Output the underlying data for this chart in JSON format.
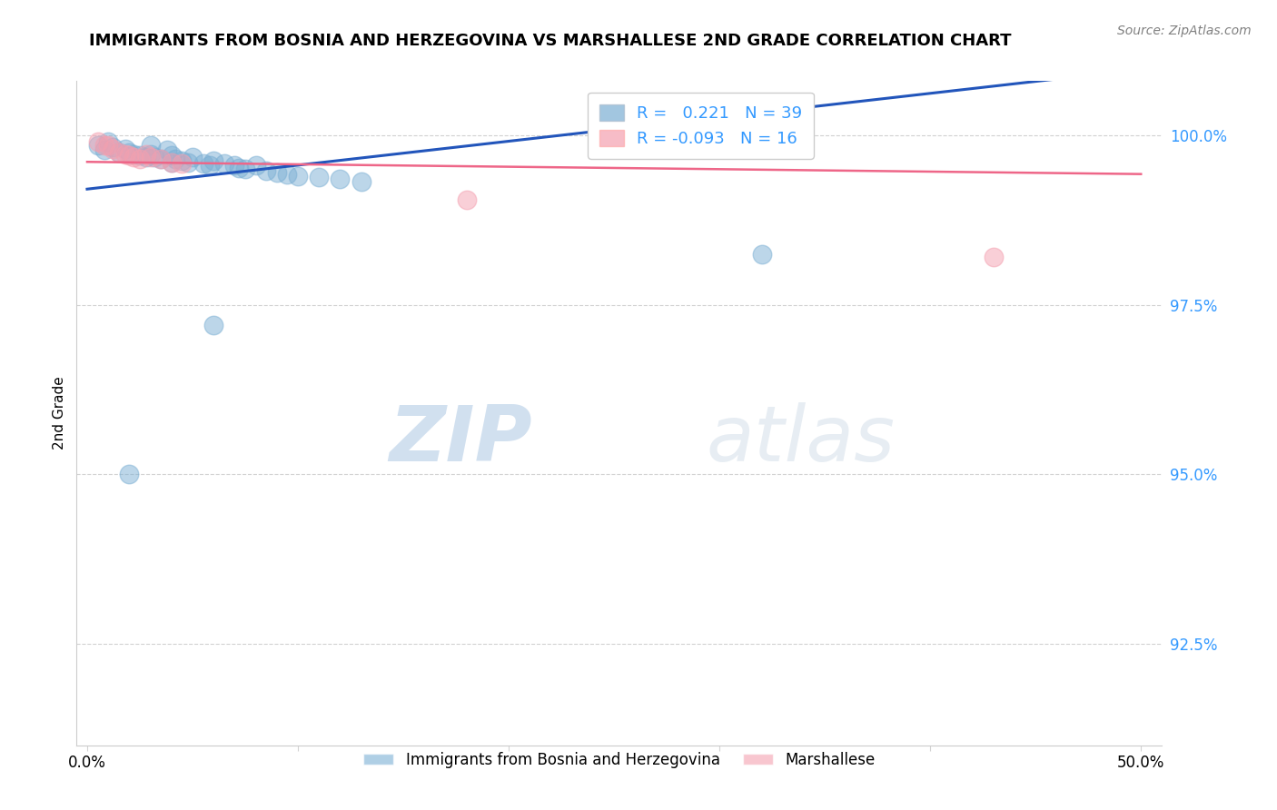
{
  "title": "IMMIGRANTS FROM BOSNIA AND HERZEGOVINA VS MARSHALLESE 2ND GRADE CORRELATION CHART",
  "source": "Source: ZipAtlas.com",
  "ylabel": "2nd Grade",
  "ytick_labels": [
    "100.0%",
    "97.5%",
    "95.0%",
    "92.5%"
  ],
  "ytick_values": [
    1.0,
    0.975,
    0.95,
    0.925
  ],
  "xlim": [
    0.0,
    0.5
  ],
  "ylim": [
    0.91,
    1.008
  ],
  "r_blue": 0.221,
  "n_blue": 39,
  "r_pink": -0.093,
  "n_pink": 16,
  "blue_color": "#7BAFD4",
  "pink_color": "#F4A0B0",
  "trend_blue": "#2255BB",
  "trend_pink": "#EE6688",
  "blue_scatter_x": [
    0.005,
    0.008,
    0.01,
    0.012,
    0.015,
    0.018,
    0.02,
    0.022,
    0.025,
    0.028,
    0.03,
    0.03,
    0.032,
    0.035,
    0.038,
    0.04,
    0.04,
    0.042,
    0.045,
    0.048,
    0.05,
    0.055,
    0.058,
    0.06,
    0.065,
    0.07,
    0.072,
    0.075,
    0.08,
    0.085,
    0.09,
    0.095,
    0.1,
    0.11,
    0.12,
    0.13,
    0.02,
    0.06,
    0.32
  ],
  "blue_scatter_y": [
    0.9985,
    0.9978,
    0.999,
    0.9982,
    0.9975,
    0.998,
    0.9975,
    0.9972,
    0.997,
    0.9968,
    0.9985,
    0.9972,
    0.9968,
    0.9965,
    0.9978,
    0.997,
    0.996,
    0.9965,
    0.9962,
    0.996,
    0.9968,
    0.9958,
    0.9955,
    0.9962,
    0.9958,
    0.9955,
    0.9952,
    0.995,
    0.9955,
    0.9948,
    0.9945,
    0.9942,
    0.994,
    0.9938,
    0.9935,
    0.9932,
    0.95,
    0.972,
    0.9825
  ],
  "pink_scatter_x": [
    0.005,
    0.008,
    0.01,
    0.012,
    0.015,
    0.018,
    0.02,
    0.022,
    0.025,
    0.028,
    0.03,
    0.035,
    0.04,
    0.045,
    0.18,
    0.43
  ],
  "pink_scatter_y": [
    0.999,
    0.9985,
    0.9985,
    0.998,
    0.9975,
    0.9972,
    0.997,
    0.9968,
    0.9965,
    0.9972,
    0.9968,
    0.9965,
    0.996,
    0.9958,
    0.9905,
    0.982
  ],
  "watermark_zip": "ZIP",
  "watermark_atlas": "atlas",
  "legend_label_blue": "Immigrants from Bosnia and Herzegovina",
  "legend_label_pink": "Marshallese"
}
